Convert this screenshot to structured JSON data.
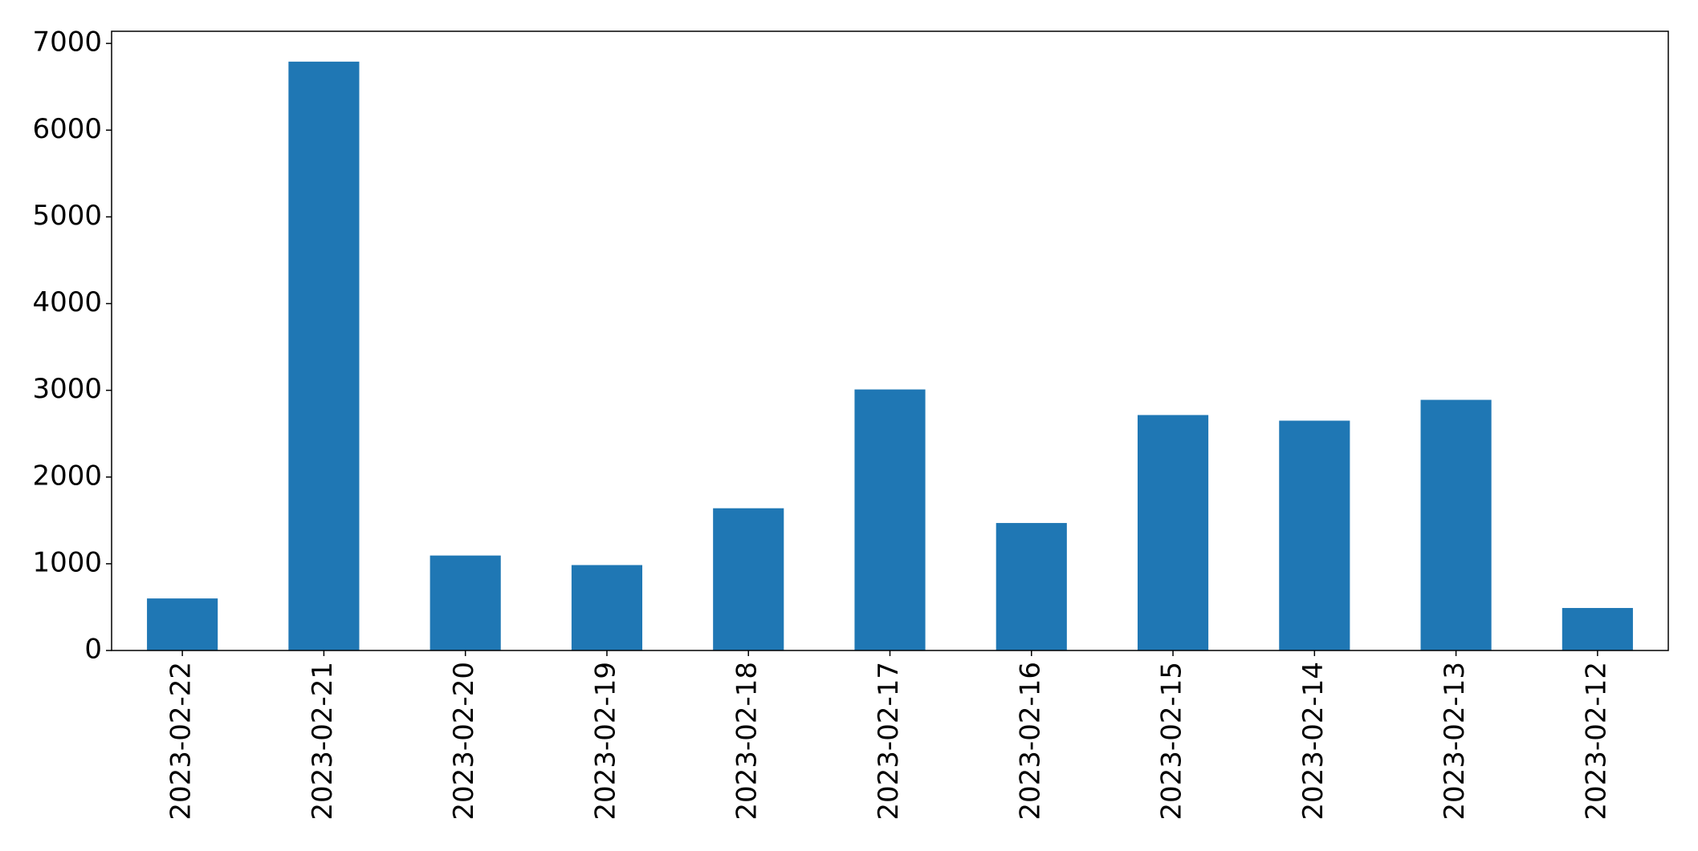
{
  "chart_data": {
    "type": "bar",
    "title": "",
    "xlabel": "",
    "ylabel": "",
    "categories": [
      "2023-02-22",
      "2023-02-21",
      "2023-02-20",
      "2023-02-19",
      "2023-02-18",
      "2023-02-17",
      "2023-02-16",
      "2023-02-15",
      "2023-02-14",
      "2023-02-13",
      "2023-02-12"
    ],
    "values": [
      600,
      6790,
      1095,
      985,
      1640,
      3010,
      1470,
      2715,
      2650,
      2890,
      490
    ],
    "ylim": [
      0,
      7140
    ],
    "yticks": [
      0,
      1000,
      2000,
      3000,
      4000,
      5000,
      6000,
      7000
    ],
    "ytick_labels": [
      "0",
      "1000",
      "2000",
      "3000",
      "4000",
      "5000",
      "6000",
      "7000"
    ],
    "bar_color": "#1f77b4",
    "grid": false,
    "legend": "none"
  }
}
